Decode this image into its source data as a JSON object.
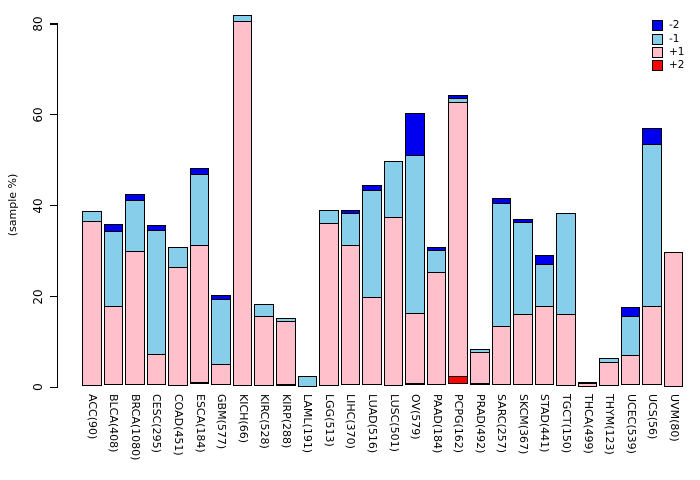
{
  "chart_data": {
    "type": "bar",
    "stacked": true,
    "title": "",
    "xlabel": "",
    "ylabel": "(sample %)",
    "yticks": [
      0,
      20,
      40,
      60,
      80
    ],
    "ylim": [
      0,
      82
    ],
    "grid": false,
    "legend_position": "top-right",
    "legend": [
      {
        "label": "-2",
        "color": "#0000EE"
      },
      {
        "label": "-1",
        "color": "#87CEEB"
      },
      {
        "label": "+1",
        "color": "#FFC0CB"
      },
      {
        "label": "+2",
        "color": "#FF0000"
      }
    ],
    "stack_order_bottom_to_top": [
      "+2",
      "+1",
      "-1",
      "-2"
    ],
    "categories": [
      "ACC(90)",
      "BLCA(408)",
      "BRCA(1080)",
      "CESC(295)",
      "COAD(451)",
      "ESCA(184)",
      "GBM(577)",
      "KICH(66)",
      "KIRC(528)",
      "KIRP(288)",
      "LAML(191)",
      "LGG(513)",
      "LIHC(370)",
      "LUAD(516)",
      "LUSC(501)",
      "OV(579)",
      "PAAD(184)",
      "PCPG(162)",
      "PRAD(492)",
      "SARC(257)",
      "SKCM(367)",
      "STAD(441)",
      "TGCT(150)",
      "THCA(499)",
      "THYM(123)",
      "UCEC(539)",
      "UCS(56)",
      "UVM(80)"
    ],
    "series": [
      {
        "name": "-2",
        "color": "#0000EE",
        "values": [
          0,
          1.6,
          1.5,
          1.3,
          0,
          1.6,
          1.0,
          0,
          0,
          0,
          0,
          0,
          0.8,
          1.3,
          0,
          9.4,
          0.9,
          0.9,
          0,
          1.3,
          0.9,
          2.2,
          0,
          0,
          0,
          2.4,
          3.8,
          0
        ]
      },
      {
        "name": "-1",
        "color": "#87CEEB",
        "values": [
          2.5,
          16.9,
          11.4,
          27.4,
          4.7,
          15.8,
          14.6,
          1.5,
          2.9,
          0.9,
          2.6,
          3.1,
          7.3,
          23.9,
          12.7,
          35.0,
          5.2,
          1.1,
          0.8,
          27.3,
          20.4,
          9.4,
          22.4,
          0.35,
          1.0,
          8.7,
          36.0,
          0
        ]
      },
      {
        "name": "+1",
        "color": "#FFC0CB",
        "values": [
          36.3,
          17.4,
          29.6,
          7.0,
          26.3,
          30.6,
          4.7,
          80.5,
          15.4,
          14.0,
          0,
          35.9,
          30.9,
          19.4,
          37.2,
          15.6,
          24.9,
          60.6,
          7.2,
          13.0,
          15.7,
          17.5,
          15.9,
          0.85,
          5.4,
          6.7,
          17.4,
          29.9
        ]
      },
      {
        "name": "+2",
        "color": "#FF0000",
        "values": [
          0,
          0,
          0,
          0,
          0,
          0.4,
          0,
          0,
          0,
          0.3,
          0,
          0,
          0,
          0,
          0,
          0.3,
          0,
          1.8,
          0.4,
          0,
          0,
          0,
          0,
          0,
          0,
          0,
          0,
          0
        ]
      }
    ]
  },
  "colors": {
    "background": "#FFFFFF",
    "axis": "#000000",
    "bar_border": "#000000",
    "text": "#000000"
  }
}
